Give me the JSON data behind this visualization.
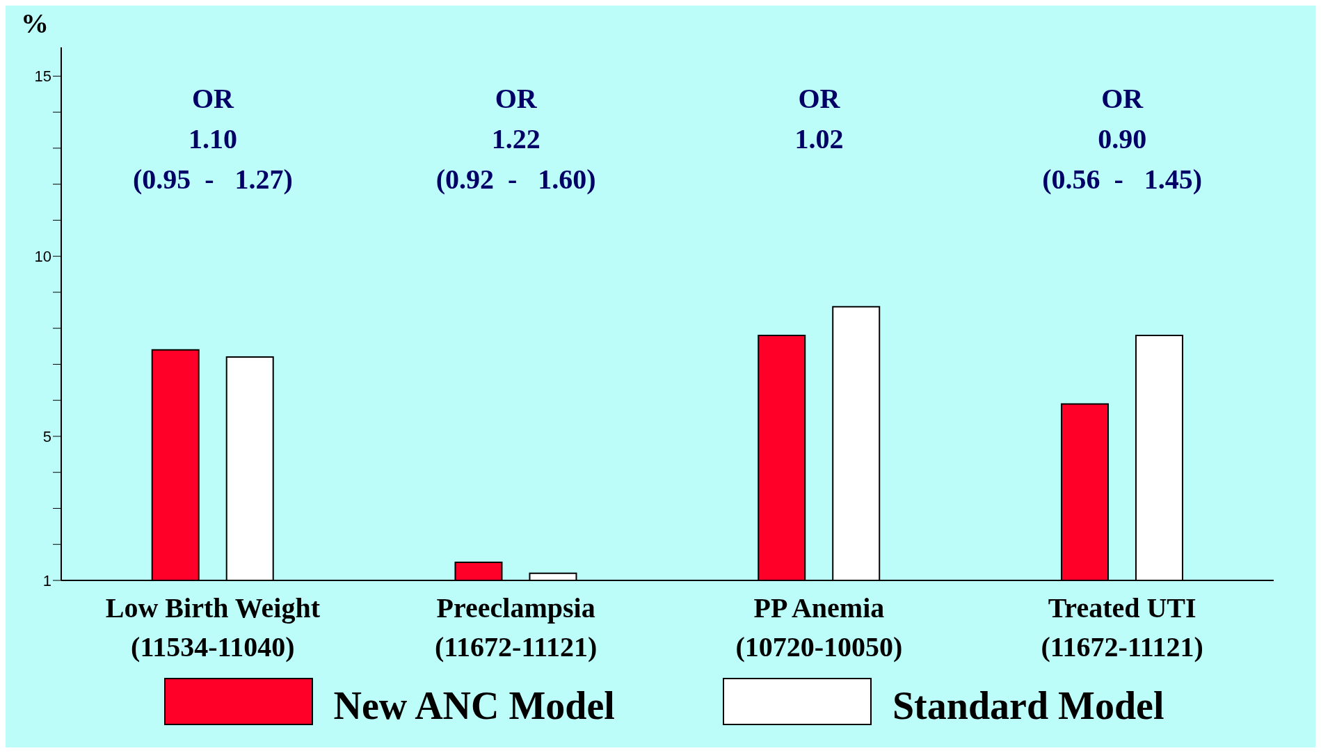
{
  "chart_data": {
    "type": "bar",
    "ylabel": "%",
    "categories": [
      "Low Birth Weight\n(11534-11040)",
      "Preeclampsia\n(11672-11121)",
      "PP Anemia\n(10720-10050)",
      "Treated UTI\n(11672-11121)"
    ],
    "series": [
      {
        "name": "New ANC Model",
        "color": "#ff0029",
        "values": [
          7.4,
          1.5,
          7.8,
          5.9
        ]
      },
      {
        "name": "Standard Model",
        "color": "#ffffff",
        "values": [
          7.2,
          1.2,
          8.6,
          7.8
        ]
      }
    ],
    "ylim": [
      1,
      15.8
    ],
    "yticks": [
      1,
      {
        "value": 2,
        "label": null
      },
      {
        "value": 3,
        "label": null
      },
      {
        "value": 4,
        "label": null
      },
      5,
      {
        "value": 6,
        "label": null
      },
      {
        "value": 7,
        "label": null
      },
      {
        "value": 8,
        "label": null
      },
      {
        "value": 9,
        "label": null
      },
      10,
      {
        "value": 11,
        "label": null
      },
      {
        "value": 12,
        "label": null
      },
      {
        "value": 13,
        "label": null
      },
      {
        "value": 14,
        "label": null
      },
      15
    ],
    "annotations": [
      "OR\n1.10\n(0.95  -   1.27)",
      "OR\n1.22\n(0.92  -   1.60)",
      "OR\n1.02",
      "OR\n0.90\n(0.56  -   1.45)"
    ],
    "grid": false,
    "legend": "bottom"
  }
}
